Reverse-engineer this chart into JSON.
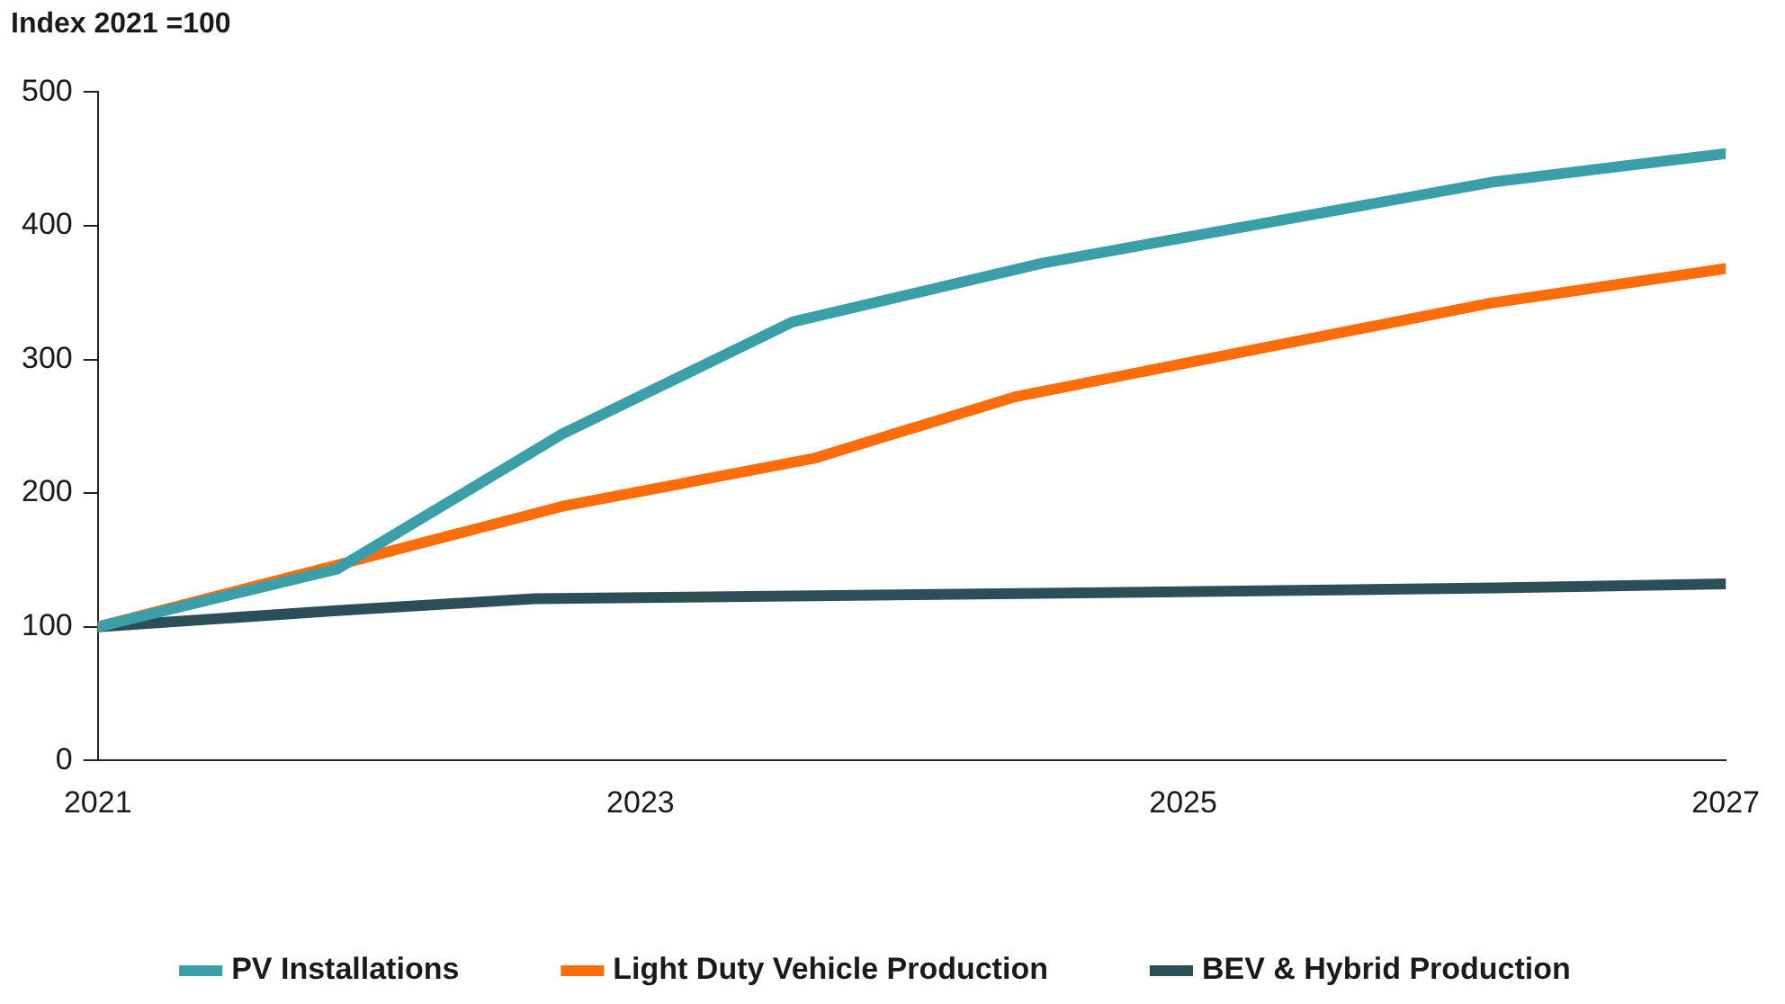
{
  "chart_data": {
    "type": "line",
    "ylabel": "Index 2021 =100",
    "xlim": [
      2021,
      2027
    ],
    "xticks": [
      2021,
      2023,
      2025,
      2027
    ],
    "ylim": [
      0,
      500
    ],
    "yticks": [
      0,
      100,
      200,
      300,
      400,
      500
    ],
    "grid": false,
    "legend": "bottom",
    "marker": "none",
    "line_style": "solid",
    "series": [
      {
        "name": "PV Installations",
        "color": "#3a9fa8",
        "x": [
          2021,
          2021.88,
          2022.71,
          2023.56,
          2024.48,
          2026.15,
          2027
        ],
        "values": [
          100,
          143,
          244,
          328,
          372,
          433,
          454
        ]
      },
      {
        "name": "Light Duty Vehicle Production",
        "color": "#ff6d0a",
        "x": [
          2021,
          2021.88,
          2022.71,
          2023.64,
          2024.38,
          2026.13,
          2027
        ],
        "values": [
          100,
          146,
          190,
          226,
          272,
          342,
          368
        ]
      },
      {
        "name": "BEV & Hybrid Production",
        "color": "#2c4f57",
        "x": [
          2021,
          2021.88,
          2022.61,
          2023.56,
          2024.48,
          2026.15,
          2027
        ],
        "values": [
          100,
          112,
          121,
          123,
          125,
          129,
          132
        ]
      }
    ]
  }
}
